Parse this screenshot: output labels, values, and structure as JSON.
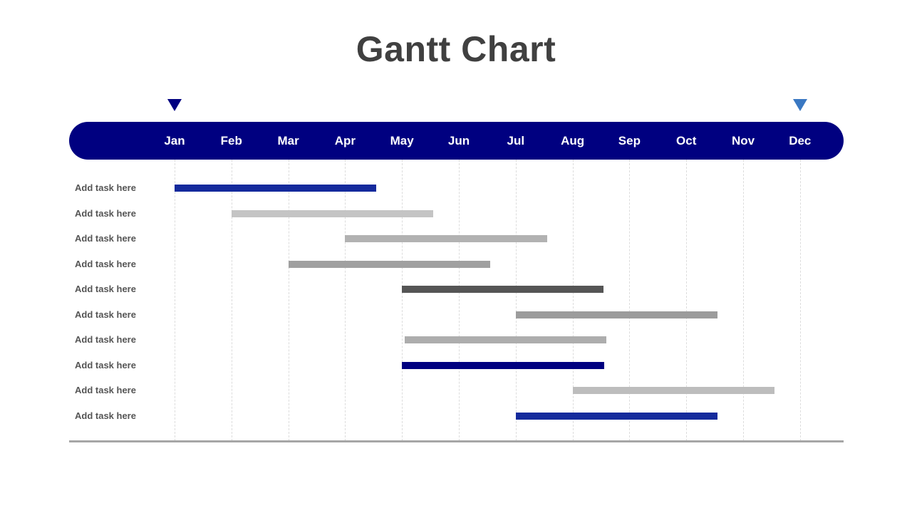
{
  "colors": {
    "band": "#000080",
    "marker_start": "#000080",
    "marker_end": "#3a78c2",
    "title_text": "#404040",
    "label_text": "#555555"
  },
  "chart_data": {
    "type": "gantt",
    "title": "Gantt Chart",
    "months": [
      "Jan",
      "Feb",
      "Mar",
      "Apr",
      "May",
      "Jun",
      "Jul",
      "Aug",
      "Sep",
      "Oct",
      "Nov",
      "Dec"
    ],
    "markers": [
      {
        "month": "Jan",
        "color": "#000080"
      },
      {
        "month": "Dec",
        "color": "#3a78c2"
      }
    ],
    "tasks": [
      {
        "label": "Add task here",
        "start": 0.0,
        "end": 3.55,
        "color": "#142a9c"
      },
      {
        "label": "Add task here",
        "start": 1.0,
        "end": 4.55,
        "color": "#c4c4c4"
      },
      {
        "label": "Add task here",
        "start": 3.0,
        "end": 6.55,
        "color": "#b2b2b2"
      },
      {
        "label": "Add task here",
        "start": 2.0,
        "end": 5.55,
        "color": "#a0a0a0"
      },
      {
        "label": "Add task here",
        "start": 4.0,
        "end": 7.55,
        "color": "#555555"
      },
      {
        "label": "Add task here",
        "start": 6.0,
        "end": 9.55,
        "color": "#9c9c9c"
      },
      {
        "label": "Add task here",
        "start": 4.05,
        "end": 7.6,
        "color": "#adadad"
      },
      {
        "label": "Add task here",
        "start": 4.0,
        "end": 7.56,
        "color": "#000080"
      },
      {
        "label": "Add task here",
        "start": 7.0,
        "end": 10.55,
        "color": "#bdbdbd"
      },
      {
        "label": "Add task here",
        "start": 6.0,
        "end": 9.55,
        "color": "#142a9c"
      }
    ],
    "grid": true
  }
}
